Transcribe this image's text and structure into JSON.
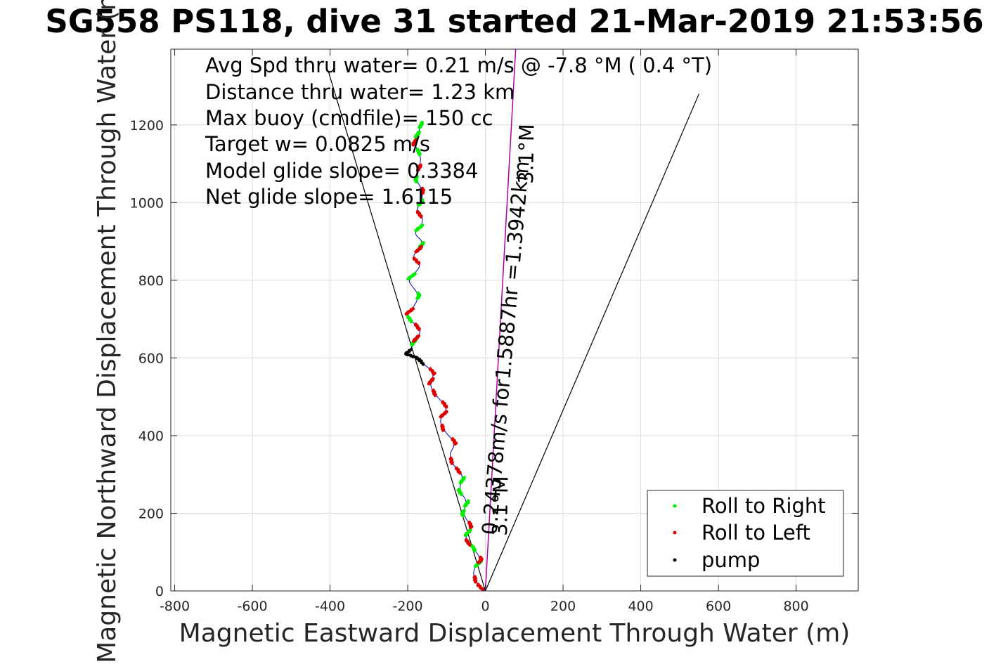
{
  "chart_data": {
    "type": "line",
    "title": "SG558 PS118, dive 31 started 21-Mar-2019 21:53:56",
    "xlabel": "Magnetic Eastward Displacement Through Water (m)",
    "ylabel": "Magnetic Northward Displacement Through Water (m)",
    "xlim": [
      -810,
      960
    ],
    "ylim": [
      0,
      1395
    ],
    "xticks": [
      -800,
      -600,
      -400,
      -200,
      0,
      200,
      400,
      600,
      800
    ],
    "yticks": [
      0,
      200,
      400,
      600,
      800,
      1000,
      1200
    ],
    "grid": true,
    "annotations": [
      "Avg Spd thru water=  0.21 m/s @  -7.8 °M (  0.4 °T)",
      "Distance thru water=  1.23 km",
      "Max buoy (cmdfile)= 150 cc",
      "Target w= 0.0825 m/s",
      "Model glide slope= 0.3384",
      "Net glide slope= 1.6115"
    ],
    "vector_label_long": "0.24378m/s for1.5887hr =1.3942km",
    "vector_label_heading_top": "3.1°M",
    "vector_label_heading_bottom": "3.1°M",
    "cone_lines": [
      {
        "name": "glide-cone-left",
        "x": [
          0,
          -405
        ],
        "y": [
          0,
          1340
        ]
      },
      {
        "name": "glide-cone-right",
        "x": [
          0,
          550
        ],
        "y": [
          0,
          1280
        ]
      }
    ],
    "current_vector": {
      "x": [
        0,
        78
      ],
      "y": [
        0,
        1395
      ]
    },
    "track": {
      "x": [
        0,
        -20,
        -35,
        -10,
        -30,
        -55,
        -35,
        -60,
        -45,
        -70,
        -55,
        -80,
        -95,
        -75,
        -105,
        -120,
        -95,
        -125,
        -145,
        -130,
        -160,
        -175,
        -205,
        -190,
        -185,
        -175,
        -165,
        -185,
        -205,
        -185,
        -170,
        -185,
        -200,
        -180,
        -165,
        -190,
        -170,
        -160,
        -185,
        -165,
        -160,
        -180,
        -165,
        -160,
        -180,
        -170,
        -165,
        -185,
        -165
      ],
      "y": [
        0,
        15,
        50,
        80,
        110,
        135,
        165,
        200,
        230,
        260,
        295,
        320,
        350,
        380,
        410,
        440,
        470,
        500,
        530,
        560,
        585,
        600,
        610,
        625,
        640,
        655,
        670,
        690,
        710,
        730,
        760,
        780,
        800,
        820,
        840,
        860,
        880,
        900,
        920,
        940,
        960,
        980,
        1000,
        1030,
        1060,
        1090,
        1120,
        1150,
        1200
      ]
    },
    "roll_right_y": [
      70,
      110,
      150,
      200,
      225,
      255,
      285,
      640,
      700,
      760,
      810,
      890,
      935,
      1000,
      1060,
      1130,
      1175,
      1200
    ],
    "roll_left_y": [
      10,
      30,
      80,
      125,
      170,
      310,
      335,
      385,
      420,
      455,
      480,
      510,
      540,
      565,
      650,
      680,
      720,
      850,
      880,
      970,
      1030,
      1090,
      1155
    ],
    "pump_y": [
      590,
      600,
      605,
      610,
      615
    ],
    "legend": [
      {
        "label": "Roll to Right",
        "color": "#00ee00"
      },
      {
        "label": "Roll to Left",
        "color": "#dd0000"
      },
      {
        "label": "pump",
        "color": "#000000"
      }
    ],
    "legend_position": "bottom-right"
  },
  "colors": {
    "track": "#0000cc",
    "vector": "#aa00aa",
    "grid": "#dcdcdc",
    "axis": "#262626"
  }
}
